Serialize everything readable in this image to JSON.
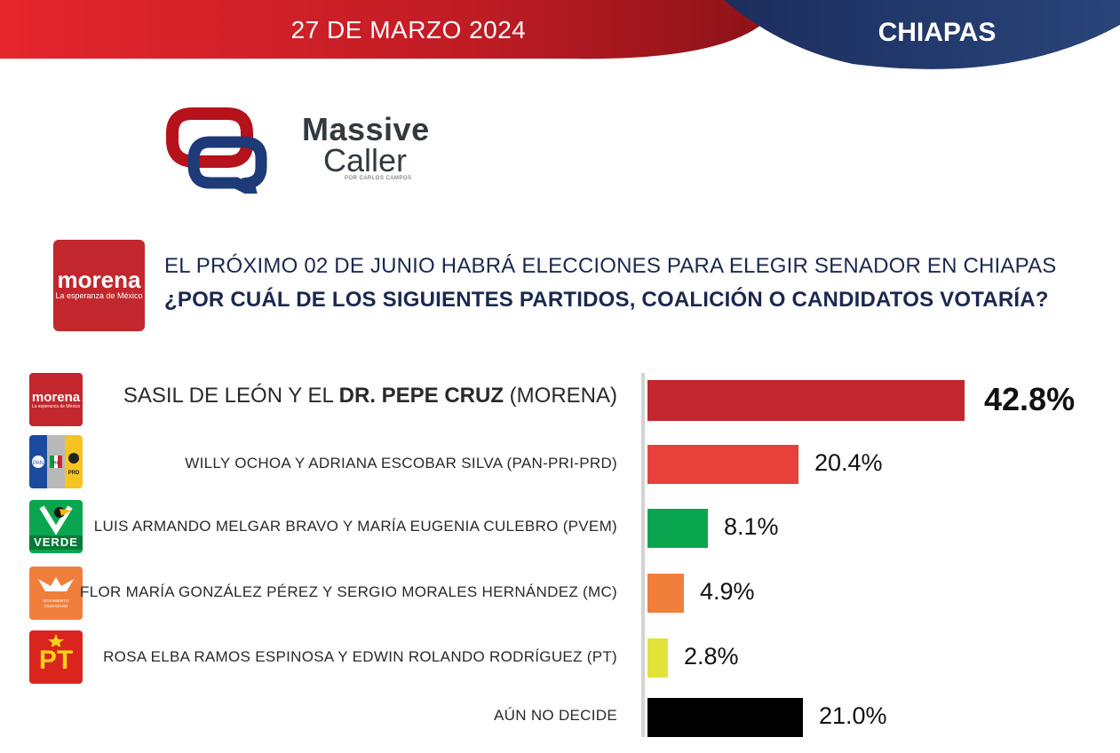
{
  "header": {
    "date": "27 DE MARZO 2024",
    "state": "CHIAPAS"
  },
  "brand": {
    "line1": "Massive",
    "line2": "Caller",
    "tagline": "POR CARLOS CAMPOS"
  },
  "question": {
    "line1": "EL PRÓXIMO 02 DE JUNIO HABRÁ ELECCIONES PARA ELEGIR SENADOR EN CHIAPAS",
    "line2": "¿POR CUÁL DE LOS SIGUIENTES PARTIDOS, COALICIÓN O CANDIDATOS VOTARÍA?"
  },
  "logos": {
    "morena_name": "morena",
    "morena_slogan": "La esperanza de México",
    "verde": "VERDE",
    "mc": "MOVIMIENTO CIUDADANO",
    "pt": "PT",
    "pan": "PAN",
    "pri": "PRI",
    "prd": "PRD"
  },
  "colors": {
    "header_red": "#c8202a",
    "header_navy": "#1f3566",
    "morena": "#c1272d",
    "pan_pri_prd": "#e8403a",
    "pvem": "#0aa64f",
    "mc": "#f07f3c",
    "pt": "#e2e23a",
    "undecided": "#000000"
  },
  "chart_data": {
    "type": "bar",
    "orientation": "horizontal",
    "title": "¿POR CUÁL DE LOS SIGUIENTES PARTIDOS, COALICIÓN O CANDIDATOS VOTARÍA?",
    "xlabel": "",
    "ylabel": "",
    "xlim": [
      0,
      42.8
    ],
    "categories": [
      "SASIL DE LEÓN Y EL DR. PEPE CRUZ (MORENA)",
      "WILLY OCHOA Y ADRIANA ESCOBAR SILVA (PAN-PRI-PRD)",
      "LUIS ARMANDO MELGAR BRAVO Y MARÍA EUGENIA CULEBRO (PVEM)",
      "FLOR MARÍA GONZÁLEZ PÉREZ Y SERGIO MORALES HERNÁNDEZ (MC)",
      "ROSA ELBA RAMOS ESPINOSA Y EDWIN ROLANDO RODRÍGUEZ (PT)",
      "AÚN NO DECIDE"
    ],
    "values": [
      42.8,
      20.4,
      8.1,
      4.9,
      2.8,
      21.0
    ],
    "value_labels": [
      "42.8%",
      "20.4%",
      "8.1%",
      "4.9%",
      "2.8%",
      "21.0%"
    ],
    "first_label_parts": {
      "before": "SASIL DE LEÓN Y EL ",
      "bold": "DR. PEPE CRUZ",
      "after": " (MORENA)"
    }
  }
}
